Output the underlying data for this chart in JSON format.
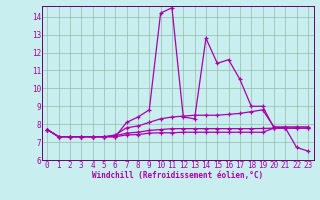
{
  "xlabel": "Windchill (Refroidissement éolien,°C)",
  "background_color": "#c8eef0",
  "grid_color": "#99bbaa",
  "line_color": "#aa00aa",
  "x": [
    0,
    1,
    2,
    3,
    4,
    5,
    6,
    7,
    8,
    9,
    10,
    11,
    12,
    13,
    14,
    15,
    16,
    17,
    18,
    19,
    20,
    21,
    22,
    23
  ],
  "series1": [
    7.7,
    7.3,
    7.3,
    7.3,
    7.3,
    7.3,
    7.3,
    8.1,
    8.4,
    8.8,
    14.2,
    14.5,
    8.4,
    8.3,
    12.8,
    11.4,
    11.6,
    10.5,
    9.0,
    9.0,
    7.8,
    7.8,
    6.7,
    6.5
  ],
  "series2": [
    7.7,
    7.3,
    7.3,
    7.3,
    7.3,
    7.3,
    7.4,
    7.8,
    7.9,
    8.1,
    8.3,
    8.4,
    8.45,
    8.5,
    8.5,
    8.5,
    8.55,
    8.6,
    8.7,
    8.8,
    7.85,
    7.85,
    7.85,
    7.85
  ],
  "series3": [
    7.7,
    7.3,
    7.3,
    7.3,
    7.3,
    7.3,
    7.35,
    7.5,
    7.55,
    7.65,
    7.7,
    7.75,
    7.75,
    7.75,
    7.75,
    7.75,
    7.75,
    7.75,
    7.75,
    7.76,
    7.78,
    7.78,
    7.78,
    7.78
  ],
  "series4": [
    7.7,
    7.3,
    7.3,
    7.3,
    7.3,
    7.3,
    7.3,
    7.4,
    7.42,
    7.5,
    7.52,
    7.52,
    7.55,
    7.55,
    7.55,
    7.55,
    7.55,
    7.55,
    7.55,
    7.55,
    7.78,
    7.78,
    7.78,
    7.78
  ],
  "ylim": [
    6,
    14.6
  ],
  "xlim": [
    -0.5,
    23.5
  ],
  "yticks": [
    6,
    7,
    8,
    9,
    10,
    11,
    12,
    13,
    14
  ],
  "xticks": [
    0,
    1,
    2,
    3,
    4,
    5,
    6,
    7,
    8,
    9,
    10,
    11,
    12,
    13,
    14,
    15,
    16,
    17,
    18,
    19,
    20,
    21,
    22,
    23
  ],
  "tick_fontsize": 5.5,
  "xlabel_fontsize": 5.5,
  "spine_color": "#660066"
}
